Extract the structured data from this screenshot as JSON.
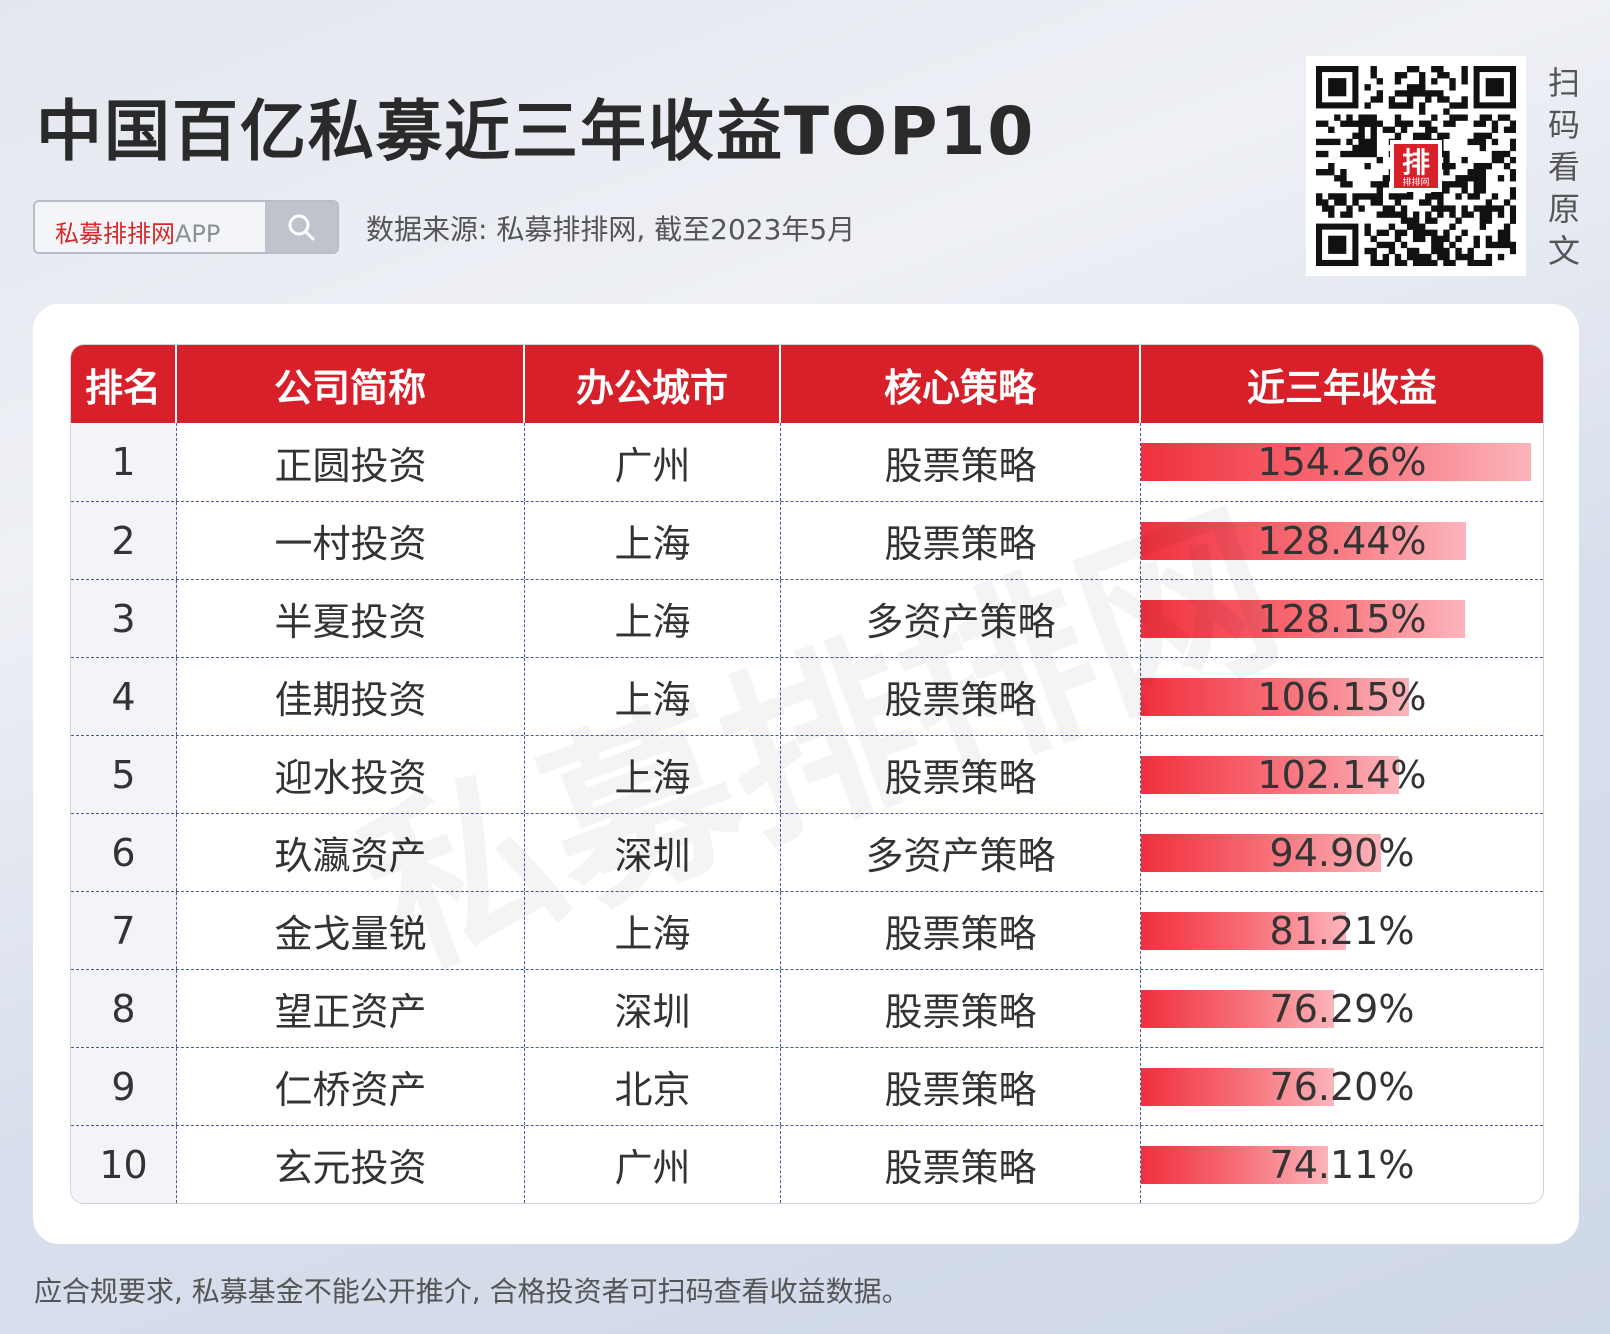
{
  "title": "中国百亿私募近三年收益TOP10",
  "search": {
    "label_brand": "私募排排网",
    "label_suffix": "APP"
  },
  "source": "数据来源: 私募排排网, 截至2023年5月",
  "qr": {
    "logo_text": "排",
    "logo_sub": "排排网"
  },
  "scan_text": [
    "扫",
    "码",
    "看",
    "原",
    "文"
  ],
  "watermark": "私募排排网",
  "table": {
    "headers": [
      "排名",
      "公司简称",
      "办公城市",
      "核心策略",
      "近三年收益"
    ],
    "max_return": 154.26,
    "rows": [
      {
        "rank": "1",
        "company": "正圆投资",
        "city": "广州",
        "strategy": "股票策略",
        "return_text": "154.26%",
        "return": 154.26
      },
      {
        "rank": "2",
        "company": "一村投资",
        "city": "上海",
        "strategy": "股票策略",
        "return_text": "128.44%",
        "return": 128.44
      },
      {
        "rank": "3",
        "company": "半夏投资",
        "city": "上海",
        "strategy": "多资产策略",
        "return_text": "128.15%",
        "return": 128.15
      },
      {
        "rank": "4",
        "company": "佳期投资",
        "city": "上海",
        "strategy": "股票策略",
        "return_text": "106.15%",
        "return": 106.15
      },
      {
        "rank": "5",
        "company": "迎水投资",
        "city": "上海",
        "strategy": "股票策略",
        "return_text": "102.14%",
        "return": 102.14
      },
      {
        "rank": "6",
        "company": "玖瀛资产",
        "city": "深圳",
        "strategy": "多资产策略",
        "return_text": "94.90%",
        "return": 94.9
      },
      {
        "rank": "7",
        "company": "金戈量锐",
        "city": "上海",
        "strategy": "股票策略",
        "return_text": "81.21%",
        "return": 81.21
      },
      {
        "rank": "8",
        "company": "望正资产",
        "city": "深圳",
        "strategy": "股票策略",
        "return_text": "76.29%",
        "return": 76.29
      },
      {
        "rank": "9",
        "company": "仁桥资产",
        "city": "北京",
        "strategy": "股票策略",
        "return_text": "76.20%",
        "return": 76.2
      },
      {
        "rank": "10",
        "company": "玄元投资",
        "city": "广州",
        "strategy": "股票策略",
        "return_text": "74.11%",
        "return": 74.11
      }
    ]
  },
  "footer": "应合规要求, 私募基金不能公开推介, 合格投资者可扫码查看收益数据。",
  "colors": {
    "accent": "#d8202a",
    "bar_start": "#f0303d",
    "bar_end": "#fcb4bb"
  }
}
